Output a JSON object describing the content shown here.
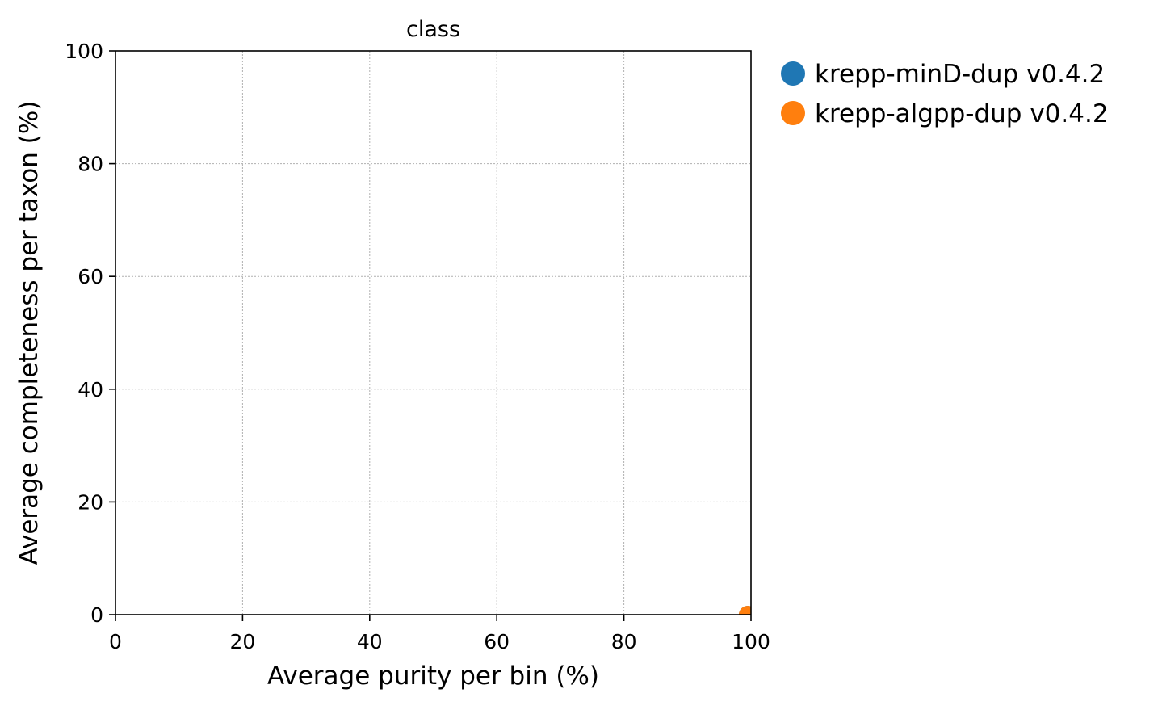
{
  "chart_data": {
    "type": "scatter",
    "title": "class",
    "xlabel": "Average purity per bin (%)",
    "ylabel": "Average completeness per taxon (%)",
    "xlim": [
      0,
      100
    ],
    "ylim": [
      0,
      100
    ],
    "xticks": [
      0,
      20,
      40,
      60,
      80,
      100
    ],
    "yticks": [
      0,
      20,
      40,
      60,
      80,
      100
    ],
    "xtick_labels": [
      "0",
      "20",
      "40",
      "60",
      "80",
      "100"
    ],
    "ytick_labels": [
      "0",
      "20",
      "40",
      "60",
      "80",
      "100"
    ],
    "grid": true,
    "legend_position": "outside-right-top",
    "series": [
      {
        "name": "krepp-minD-dup v0.4.2",
        "color": "#1f77b4",
        "points": [
          {
            "x": 100,
            "y": 0
          }
        ]
      },
      {
        "name": "krepp-algpp-dup v0.4.2",
        "color": "#ff7f0e",
        "points": [
          {
            "x": 100,
            "y": 0
          }
        ]
      }
    ]
  }
}
